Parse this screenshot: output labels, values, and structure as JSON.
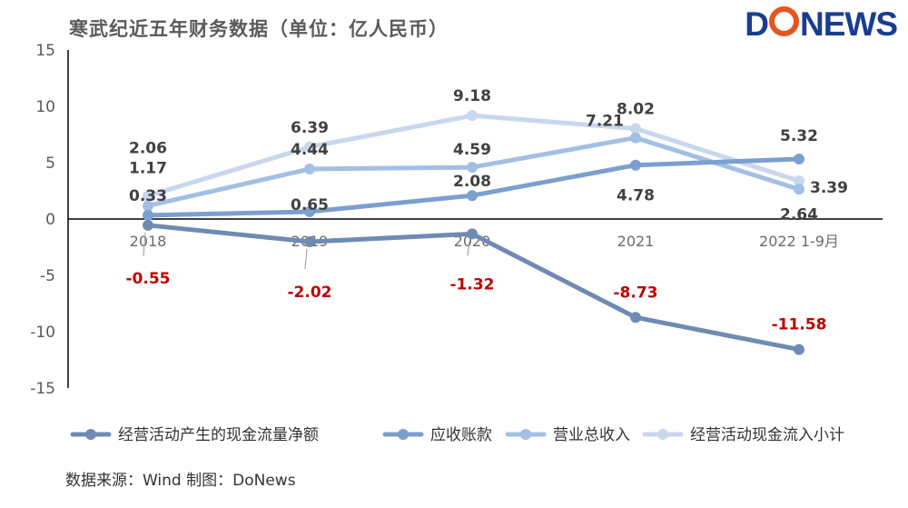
{
  "title": "寒武纪近五年财务数据（单位：亿人民币）",
  "logo": {
    "part1": "D",
    "part2": "NEWS"
  },
  "source": "数据来源：Wind   制图：DoNews",
  "chart_data": {
    "type": "line",
    "categories": [
      "2018",
      "2019",
      "2020",
      "2021",
      "2022 1-9月"
    ],
    "ylim": [
      -15,
      15
    ],
    "yticks": [
      15,
      10,
      5,
      0,
      -5,
      -10,
      -15
    ],
    "series": [
      {
        "name": "经营活动产生的现金流量净额",
        "color": "#6f8bb3",
        "values": [
          -0.55,
          -2.02,
          -1.32,
          -8.73,
          -11.58
        ]
      },
      {
        "name": "应收账款",
        "color": "#7b9fce",
        "values": [
          0.33,
          0.65,
          2.08,
          4.78,
          5.32
        ]
      },
      {
        "name": "营业总收入",
        "color": "#a3bfe3",
        "values": [
          1.17,
          4.44,
          4.59,
          7.21,
          2.64
        ]
      },
      {
        "name": "经营活动现金流入小计",
        "color": "#c9d7ee",
        "values": [
          2.06,
          6.39,
          9.18,
          8.02,
          3.39
        ]
      }
    ]
  }
}
